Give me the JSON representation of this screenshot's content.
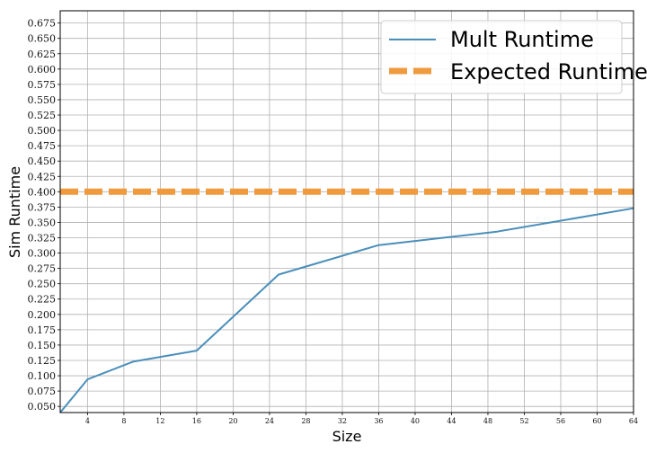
{
  "chart_data": {
    "type": "line",
    "title": "",
    "xlabel": "Size",
    "ylabel": "Sim Runtime",
    "xlim": [
      1,
      64
    ],
    "ylim": [
      0.04,
      0.695
    ],
    "x_ticks": [
      4,
      8,
      12,
      16,
      20,
      24,
      28,
      32,
      36,
      40,
      44,
      48,
      52,
      56,
      60,
      64
    ],
    "y_ticks": [
      0.05,
      0.075,
      0.1,
      0.125,
      0.15,
      0.175,
      0.2,
      0.225,
      0.25,
      0.275,
      0.3,
      0.325,
      0.35,
      0.375,
      0.4,
      0.425,
      0.45,
      0.475,
      0.5,
      0.525,
      0.55,
      0.575,
      0.6,
      0.625,
      0.65,
      0.675
    ],
    "grid": true,
    "legend_position": "top-right",
    "series": [
      {
        "name": "Mult Runtime",
        "style": "solid",
        "color": "#4a8fba",
        "x": [
          1,
          4,
          9,
          16,
          25,
          36,
          49,
          64
        ],
        "y": [
          0.04,
          0.094,
          0.123,
          0.141,
          0.265,
          0.313,
          0.335,
          0.373
        ]
      },
      {
        "name": "Expected Runtime",
        "style": "dashed",
        "color": "#f09a3e",
        "x": [
          1,
          64
        ],
        "y": [
          0.4,
          0.4
        ]
      }
    ]
  }
}
